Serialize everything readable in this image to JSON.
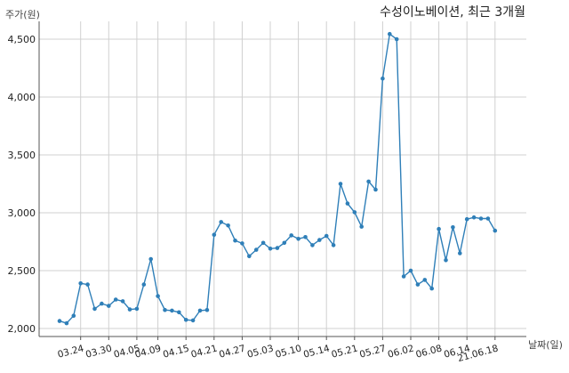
{
  "chart_data": {
    "type": "line",
    "title": "수성이노베이션, 최근 3개월",
    "ylabel": "주가(원)",
    "xlabel": "날짜(일)",
    "ylim": [
      2000,
      4700
    ],
    "yticks": [
      2000,
      2500,
      3000,
      3500,
      4000,
      4500
    ],
    "ytick_labels": [
      "2,000",
      "2,500",
      "3,000",
      "3,500",
      "4,000",
      "4,500"
    ],
    "xtick_labels": [
      "03.24",
      "03.30",
      "04.05",
      "04.09",
      "04.15",
      "04.21",
      "04.27",
      "05.03",
      "05.10",
      "05.14",
      "05.21",
      "05.27",
      "06.02",
      "06.08",
      "06.14",
      "21.06.18"
    ],
    "xtick_index": [
      3,
      7,
      11,
      14,
      18,
      22,
      26,
      30,
      34,
      38,
      42,
      46,
      50,
      54,
      58,
      62
    ],
    "grid": true,
    "line_color": "#2f7fb8",
    "series": [
      {
        "values": [
          2065,
          2045,
          2110,
          2390,
          2380,
          2170,
          2215,
          2195,
          2250,
          2235,
          2165,
          2170,
          2380,
          2600,
          2280,
          2160,
          2155,
          2140,
          2075,
          2070,
          2155,
          2160,
          2810,
          2920,
          2890,
          2760,
          2735,
          2625,
          2680,
          2740,
          2690,
          2695,
          2740,
          2805,
          2775,
          2790,
          2720,
          2765,
          2800,
          2720,
          3250,
          3080,
          3005,
          2880,
          3270,
          3200,
          4160,
          4545,
          4500,
          2450,
          2500,
          2380,
          2420,
          2345,
          2860,
          2590,
          2875,
          2650,
          2945,
          2960,
          2950,
          2950,
          2845
        ]
      }
    ]
  }
}
